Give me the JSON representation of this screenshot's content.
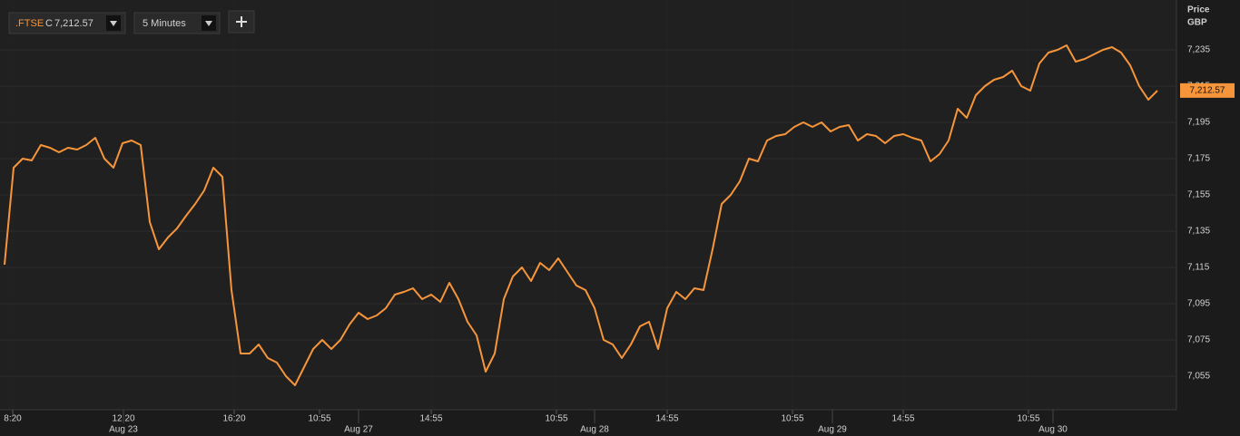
{
  "chart_data": {
    "type": "line",
    "interval": "5 Minutes",
    "close_prefix": "C",
    "close_value": "7,212.57",
    "y_axis_title": "Price",
    "y_axis_unit": "GBP",
    "series": [
      {
        "name": ".FTSE",
        "color": "#f7953b",
        "values": [
          7116.5,
          7170,
          7175,
          7174,
          7182.5,
          7181,
          7178.5,
          7181,
          7180,
          7182.5,
          7186.5,
          7175,
          7170,
          7183.5,
          7185,
          7182.5,
          7140,
          7125,
          7131.5,
          7136.5,
          7143.5,
          7150,
          7157.5,
          7170,
          7165,
          7102.5,
          7067.5,
          7067.5,
          7072.5,
          7065,
          7062.5,
          7055,
          7050,
          7060,
          7070,
          7075,
          7070,
          7075,
          7083.5,
          7090,
          7086.5,
          7088.5,
          7092.5,
          7100,
          7101.5,
          7103.5,
          7097.5,
          7100,
          7096,
          7106.5,
          7097.5,
          7085,
          7077.5,
          7057.5,
          7067.5,
          7097.5,
          7110,
          7115,
          7107.5,
          7117.5,
          7113.5,
          7120,
          7112.5,
          7105,
          7102.5,
          7092.5,
          7075,
          7072.5,
          7065,
          7072.5,
          7082.5,
          7085,
          7070,
          7092.5,
          7101.5,
          7097.5,
          7103.5,
          7102.5,
          7125,
          7150,
          7155,
          7162.5,
          7175,
          7173.5,
          7185,
          7187.5,
          7188.5,
          7192.5,
          7195,
          7192.5,
          7195,
          7190,
          7192.5,
          7193.5,
          7185,
          7188.5,
          7187.5,
          7183.5,
          7187.5,
          7188.5,
          7186.5,
          7185,
          7173.5,
          7177.5,
          7185,
          7202.5,
          7197.5,
          7210,
          7215,
          7218.5,
          7220,
          7223.5,
          7215,
          7212.5,
          7227.5,
          7233.5,
          7235,
          7237.5,
          7228.5,
          7230,
          7232.5,
          7235,
          7236.5,
          7233.5,
          7226.5,
          7215,
          7207.5,
          7212.5
        ]
      }
    ],
    "last_price": {
      "value": 7212.57,
      "label": "7,212.57"
    },
    "xlim": [
      0,
      127
    ],
    "xticks": [
      {
        "value": 0.9,
        "label": "8:20"
      },
      {
        "value": 13.1,
        "label": "12:20"
      },
      {
        "value": 25.3,
        "label": "16:20"
      },
      {
        "value": 34.7,
        "label": "10:55"
      },
      {
        "value": 47,
        "label": "14:55"
      },
      {
        "value": 60.8,
        "label": "10:55"
      },
      {
        "value": 73,
        "label": "14:55"
      },
      {
        "value": 86.8,
        "label": "10:55"
      },
      {
        "value": 99,
        "label": "14:55"
      },
      {
        "value": 112.8,
        "label": "10:55"
      }
    ],
    "date_ticks": [
      {
        "value": 13.1,
        "label": "Aug 23"
      },
      {
        "value": 39,
        "label": "Aug 27"
      },
      {
        "value": 65,
        "label": "Aug 28"
      },
      {
        "value": 91.2,
        "label": "Aug 29"
      },
      {
        "value": 115.5,
        "label": "Aug 30"
      }
    ],
    "ylim": [
      7037.5,
      7262.5
    ],
    "yticks": [
      {
        "value": 7055,
        "label": "7,055"
      },
      {
        "value": 7075,
        "label": "7,075"
      },
      {
        "value": 7095,
        "label": "7,095"
      },
      {
        "value": 7115,
        "label": "7,115"
      },
      {
        "value": 7135,
        "label": "7,135"
      },
      {
        "value": 7155,
        "label": "7,155"
      },
      {
        "value": 7175,
        "label": "7,175"
      },
      {
        "value": 7195,
        "label": "7,195"
      },
      {
        "value": 7215,
        "label": "7,215"
      },
      {
        "value": 7235,
        "label": "7,235"
      }
    ],
    "grid": true
  }
}
